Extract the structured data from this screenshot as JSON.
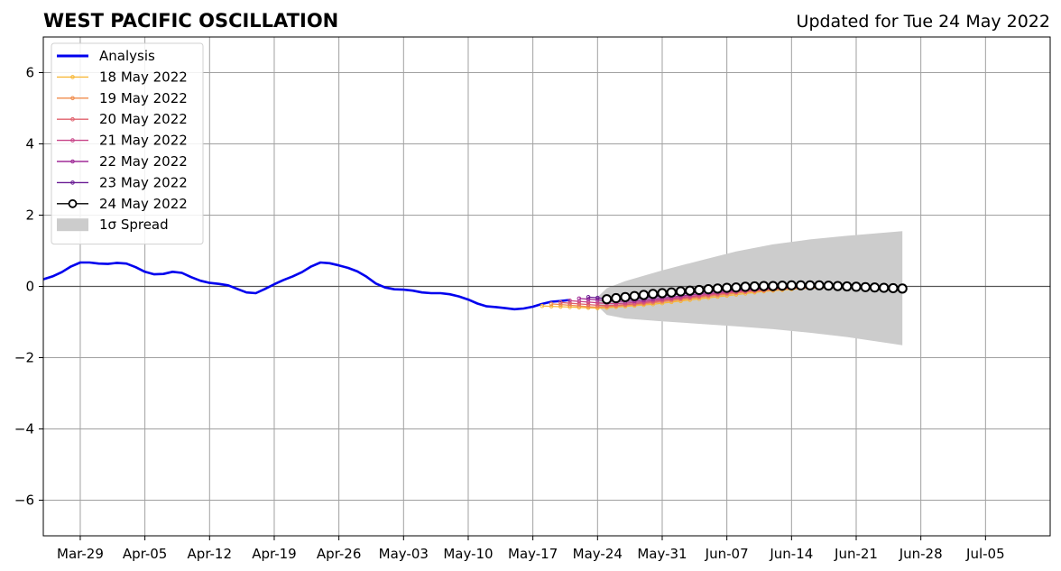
{
  "chart_data": {
    "type": "line",
    "title": "WEST PACIFIC OSCILLATION",
    "subtitle": "Updated for Tue 24 May 2022",
    "xlabel": "",
    "ylabel": "",
    "x_axis": {
      "type": "date",
      "range": [
        "2022-03-25",
        "2022-07-12"
      ],
      "ticks": [
        {
          "date": "2022-03-29",
          "label": "Mar-29"
        },
        {
          "date": "2022-04-05",
          "label": "Apr-05"
        },
        {
          "date": "2022-04-12",
          "label": "Apr-12"
        },
        {
          "date": "2022-04-19",
          "label": "Apr-19"
        },
        {
          "date": "2022-04-26",
          "label": "Apr-26"
        },
        {
          "date": "2022-05-03",
          "label": "May-03"
        },
        {
          "date": "2022-05-10",
          "label": "May-10"
        },
        {
          "date": "2022-05-17",
          "label": "May-17"
        },
        {
          "date": "2022-05-24",
          "label": "May-24"
        },
        {
          "date": "2022-05-31",
          "label": "May-31"
        },
        {
          "date": "2022-06-07",
          "label": "Jun-07"
        },
        {
          "date": "2022-06-14",
          "label": "Jun-14"
        },
        {
          "date": "2022-06-21",
          "label": "Jun-21"
        },
        {
          "date": "2022-06-28",
          "label": "Jun-28"
        },
        {
          "date": "2022-07-05",
          "label": "Jul-05"
        }
      ]
    },
    "y_axis": {
      "range": [
        -7,
        7
      ],
      "ticks": [
        {
          "value": 6,
          "label": "6"
        },
        {
          "value": 4,
          "label": "4"
        },
        {
          "value": 2,
          "label": "2"
        },
        {
          "value": 0,
          "label": "0"
        },
        {
          "value": -2,
          "label": "−2"
        },
        {
          "value": -4,
          "label": "−4"
        },
        {
          "value": -6,
          "label": "−6"
        }
      ]
    },
    "grid": true,
    "legend_position": "top-left",
    "analysis": {
      "name": "Analysis",
      "color": "#0000ee",
      "start_date": "2022-03-25",
      "values": [
        0.2,
        0.28,
        0.4,
        0.56,
        0.67,
        0.67,
        0.64,
        0.63,
        0.66,
        0.64,
        0.54,
        0.41,
        0.34,
        0.35,
        0.41,
        0.38,
        0.26,
        0.16,
        0.1,
        0.07,
        0.03,
        -0.07,
        -0.17,
        -0.19,
        -0.07,
        0.06,
        0.18,
        0.28,
        0.4,
        0.56,
        0.67,
        0.65,
        0.59,
        0.52,
        0.42,
        0.27,
        0.08,
        -0.03,
        -0.08,
        -0.09,
        -0.12,
        -0.17,
        -0.19,
        -0.19,
        -0.22,
        -0.28,
        -0.37,
        -0.48,
        -0.56,
        -0.58,
        -0.61,
        -0.64,
        -0.62,
        -0.57,
        -0.49,
        -0.43,
        -0.41,
        -0.38
      ]
    },
    "forecasts": [
      {
        "name": "18 May 2022",
        "color": "#f8b838",
        "start_date": "2022-05-18",
        "values": [
          -0.55,
          -0.56,
          -0.57,
          -0.58,
          -0.59,
          -0.6,
          -0.61,
          -0.6,
          -0.58,
          -0.56,
          -0.54,
          -0.52,
          -0.5,
          -0.47,
          -0.44,
          -0.41,
          -0.38,
          -0.35,
          -0.32,
          -0.29,
          -0.26,
          -0.23,
          -0.2,
          -0.17,
          -0.14,
          -0.12,
          -0.1,
          -0.08,
          -0.06,
          -0.05,
          -0.04,
          -0.03
        ]
      },
      {
        "name": "19 May 2022",
        "color": "#f08c4c",
        "start_date": "2022-05-19",
        "values": [
          -0.49,
          -0.51,
          -0.53,
          -0.55,
          -0.57,
          -0.58,
          -0.57,
          -0.55,
          -0.53,
          -0.51,
          -0.49,
          -0.46,
          -0.43,
          -0.4,
          -0.37,
          -0.34,
          -0.31,
          -0.28,
          -0.25,
          -0.22,
          -0.19,
          -0.16,
          -0.14,
          -0.12,
          -0.1,
          -0.08,
          -0.06,
          -0.05,
          -0.04,
          -0.03,
          -0.02,
          -0.02
        ]
      },
      {
        "name": "20 May 2022",
        "color": "#e0606c",
        "start_date": "2022-05-20",
        "values": [
          -0.45,
          -0.47,
          -0.49,
          -0.51,
          -0.53,
          -0.54,
          -0.53,
          -0.51,
          -0.49,
          -0.46,
          -0.43,
          -0.4,
          -0.37,
          -0.34,
          -0.31,
          -0.28,
          -0.25,
          -0.22,
          -0.19,
          -0.16,
          -0.14,
          -0.12,
          -0.1,
          -0.08,
          -0.06,
          -0.05,
          -0.04,
          -0.03,
          -0.02,
          -0.02,
          -0.01,
          -0.01
        ]
      },
      {
        "name": "21 May 2022",
        "color": "#c84488",
        "start_date": "2022-05-21",
        "values": [
          -0.4,
          -0.42,
          -0.44,
          -0.46,
          -0.48,
          -0.48,
          -0.47,
          -0.45,
          -0.43,
          -0.4,
          -0.37,
          -0.34,
          -0.31,
          -0.28,
          -0.25,
          -0.22,
          -0.19,
          -0.16,
          -0.14,
          -0.12,
          -0.1,
          -0.08,
          -0.06,
          -0.05,
          -0.04,
          -0.03,
          -0.02,
          -0.01,
          -0.01,
          0.0,
          0.0,
          0.0
        ]
      },
      {
        "name": "22 May 2022",
        "color": "#a02c98",
        "start_date": "2022-05-22",
        "values": [
          -0.34,
          -0.36,
          -0.38,
          -0.4,
          -0.42,
          -0.42,
          -0.41,
          -0.39,
          -0.36,
          -0.33,
          -0.3,
          -0.27,
          -0.24,
          -0.21,
          -0.18,
          -0.15,
          -0.13,
          -0.11,
          -0.09,
          -0.07,
          -0.05,
          -0.04,
          -0.03,
          -0.02,
          -0.01,
          -0.01,
          0.0,
          0.0,
          0.01,
          0.01,
          0.01,
          0.01
        ]
      },
      {
        "name": "23 May 2022",
        "color": "#6a1c94",
        "start_date": "2022-05-23",
        "values": [
          -0.3,
          -0.32,
          -0.35,
          -0.36,
          -0.36,
          -0.35,
          -0.33,
          -0.3,
          -0.27,
          -0.24,
          -0.21,
          -0.18,
          -0.15,
          -0.13,
          -0.11,
          -0.09,
          -0.07,
          -0.05,
          -0.04,
          -0.03,
          -0.02,
          -0.01,
          0.0,
          0.0,
          0.01,
          0.01,
          0.02,
          0.02,
          0.02,
          0.02,
          0.02,
          0.02
        ]
      },
      {
        "name": "24 May 2022",
        "color": "#000000",
        "start_date": "2022-05-25",
        "values": [
          -0.36,
          -0.33,
          -0.3,
          -0.27,
          -0.24,
          -0.21,
          -0.19,
          -0.17,
          -0.14,
          -0.12,
          -0.1,
          -0.08,
          -0.06,
          -0.04,
          -0.03,
          -0.01,
          0.0,
          0.01,
          0.01,
          0.02,
          0.03,
          0.03,
          0.03,
          0.03,
          0.02,
          0.01,
          0.0,
          -0.01,
          -0.02,
          -0.03,
          -0.04,
          -0.05,
          -0.06
        ]
      }
    ],
    "spread": {
      "name": "1σ Spread",
      "color": "#cccccc",
      "dates": [
        "2022-05-24",
        "2022-05-25",
        "2022-05-27",
        "2022-05-31",
        "2022-06-04",
        "2022-06-08",
        "2022-06-12",
        "2022-06-16",
        "2022-06-20",
        "2022-06-26"
      ],
      "upper": [
        -0.3,
        -0.05,
        0.15,
        0.45,
        0.72,
        0.98,
        1.18,
        1.32,
        1.42,
        1.55
      ],
      "lower": [
        -0.55,
        -0.8,
        -0.9,
        -0.98,
        -1.05,
        -1.12,
        -1.2,
        -1.3,
        -1.42,
        -1.65
      ]
    }
  }
}
